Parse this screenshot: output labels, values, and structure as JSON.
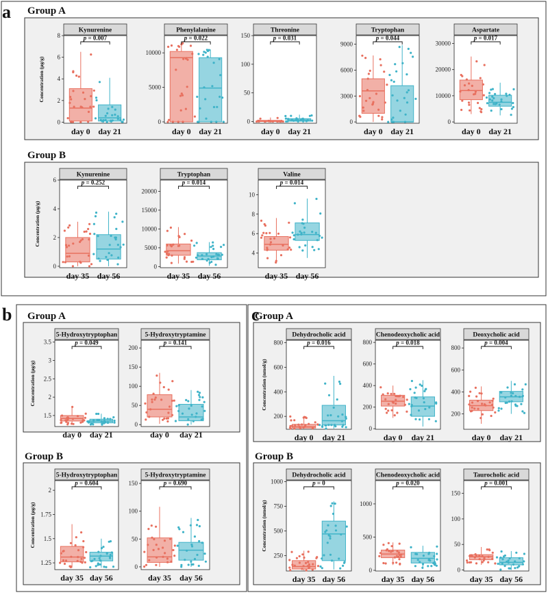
{
  "figure": {
    "colors": {
      "day_early": "#e8705f",
      "day_late": "#3fb3c8"
    },
    "sections": [
      {
        "letter": "a",
        "groups": [
          {
            "label": "Group A"
          },
          {
            "label": "Group B"
          }
        ]
      },
      {
        "letter": "b",
        "groups": [
          {
            "label": "Group A"
          },
          {
            "label": "Group B"
          }
        ]
      },
      {
        "letter": "c",
        "groups": [
          {
            "label": "Group A"
          },
          {
            "label": "Group B"
          }
        ]
      }
    ]
  },
  "chart_data": [
    {
      "type": "box",
      "panel": "a",
      "group": "Group A",
      "title": "Kynurenine",
      "ylabel": "Concentration (μg/g)",
      "categories": [
        "day 0",
        "day 21"
      ],
      "p_value": "p = 0.007",
      "ylim": [
        -0.1,
        8
      ],
      "yticks": [
        0,
        2,
        4,
        6,
        8
      ],
      "series": [
        {
          "name": "day 0",
          "q1": 0.1,
          "median": 1.3,
          "q3": 3.1,
          "whisker_low": 0,
          "whisker_high": 6.5
        },
        {
          "name": "day 21",
          "q1": 0.1,
          "median": 0.4,
          "q3": 1.6,
          "whisker_low": 0,
          "whisker_high": 4.1
        }
      ]
    },
    {
      "type": "box",
      "panel": "a",
      "group": "Group A",
      "title": "Phenylalanine",
      "ylabel": "",
      "categories": [
        "day 0",
        "day 21"
      ],
      "p_value": "p = 0.022",
      "ylim": [
        -200,
        12500
      ],
      "yticks": [
        0,
        5000,
        10000
      ],
      "series": [
        {
          "name": "day 0",
          "q1": 0,
          "median": 9300,
          "q3": 10200,
          "whisker_low": 0,
          "whisker_high": 11500
        },
        {
          "name": "day 21",
          "q1": 0,
          "median": 4900,
          "q3": 9300,
          "whisker_low": 0,
          "whisker_high": 10500
        }
      ]
    },
    {
      "type": "box",
      "panel": "a",
      "group": "Group A",
      "title": "Threonine",
      "ylabel": "",
      "categories": [
        "day 0",
        "day 21"
      ],
      "p_value": "p = 0.031",
      "ylim": [
        -3,
        150
      ],
      "yticks": [
        0,
        50,
        100,
        150
      ],
      "series": [
        {
          "name": "day 0",
          "q1": 0,
          "median": 1,
          "q3": 2,
          "whisker_low": 0,
          "whisker_high": 7
        },
        {
          "name": "day 21",
          "q1": 0.5,
          "median": 2.5,
          "q3": 5,
          "whisker_low": 0,
          "whisker_high": 12
        }
      ]
    },
    {
      "type": "box",
      "panel": "a",
      "group": "Group A",
      "title": "Tryptophan",
      "ylabel": "",
      "categories": [
        "day 0",
        "day 21"
      ],
      "p_value": "p = 0.044",
      "ylim": [
        -150,
        10000
      ],
      "yticks": [
        0,
        3000,
        6000,
        9000
      ],
      "series": [
        {
          "name": "day 0",
          "q1": 1000,
          "median": 3600,
          "q3": 5000,
          "whisker_low": 0,
          "whisker_high": 7700
        },
        {
          "name": "day 21",
          "q1": 0,
          "median": 0,
          "q3": 4200,
          "whisker_low": 0,
          "whisker_high": 8900
        }
      ]
    },
    {
      "type": "box",
      "panel": "a",
      "group": "Group A",
      "title": "Aspartate",
      "ylabel": "",
      "categories": [
        "day 0",
        "day 21"
      ],
      "p_value": "p = 0.017",
      "ylim": [
        -500,
        33000
      ],
      "yticks": [
        0,
        10000,
        20000,
        30000
      ],
      "series": [
        {
          "name": "day 0",
          "q1": 8500,
          "median": 12000,
          "q3": 16000,
          "whisker_low": 3000,
          "whisker_high": 25000
        },
        {
          "name": "day 21",
          "q1": 6000,
          "median": 7500,
          "q3": 10200,
          "whisker_low": 2500,
          "whisker_high": 15000
        }
      ]
    },
    {
      "type": "box",
      "panel": "a",
      "group": "Group B",
      "title": "Kynurenine",
      "ylabel": "Concentration (μg/g)",
      "categories": [
        "day 35",
        "day 56"
      ],
      "p_value": "p = 0.252",
      "ylim": [
        -0.1,
        6
      ],
      "yticks": [
        0,
        2,
        4,
        6
      ],
      "series": [
        {
          "name": "day 35",
          "q1": 0.3,
          "median": 0.9,
          "q3": 2.0,
          "whisker_low": 0,
          "whisker_high": 3.1
        },
        {
          "name": "day 56",
          "q1": 0.5,
          "median": 1.2,
          "q3": 2.2,
          "whisker_low": 0,
          "whisker_high": 3.8
        }
      ]
    },
    {
      "type": "box",
      "panel": "a",
      "group": "Group B",
      "title": "Tryptophan",
      "ylabel": "",
      "categories": [
        "day 35",
        "day 56"
      ],
      "p_value": "p = 0.014",
      "ylim": [
        -300,
        23000
      ],
      "yticks": [
        0,
        5000,
        10000,
        15000,
        20000
      ],
      "series": [
        {
          "name": "day 35",
          "q1": 3000,
          "median": 4200,
          "q3": 6000,
          "whisker_low": 800,
          "whisker_high": 10500
        },
        {
          "name": "day 56",
          "q1": 1800,
          "median": 2800,
          "q3": 3700,
          "whisker_low": 200,
          "whisker_high": 6500
        }
      ]
    },
    {
      "type": "box",
      "panel": "a",
      "group": "Group B",
      "title": "Valine",
      "ylabel": "",
      "categories": [
        "day 35",
        "day 56"
      ],
      "p_value": "p = 0.014",
      "ylim": [
        2.5,
        11.5
      ],
      "yticks": [
        4,
        6,
        8,
        10
      ],
      "series": [
        {
          "name": "day 35",
          "q1": 4.3,
          "median": 4.9,
          "q3": 5.7,
          "whisker_low": 3.0,
          "whisker_high": 7.6
        },
        {
          "name": "day 56",
          "q1": 5.3,
          "median": 5.9,
          "q3": 7.1,
          "whisker_low": 3.5,
          "whisker_high": 9.6
        }
      ]
    },
    {
      "type": "box",
      "panel": "b",
      "group": "Group A",
      "title": "5-Hydroxytryptophan",
      "ylabel": "Concentration (μg/g)",
      "categories": [
        "day 0",
        "day 21"
      ],
      "p_value": "p = 0.049",
      "ylim": [
        1.2,
        3.55
      ],
      "yticks": [
        1.5,
        2.0,
        2.5,
        3.0,
        3.5
      ],
      "series": [
        {
          "name": "day 0",
          "q1": 1.35,
          "median": 1.42,
          "q3": 1.5,
          "whisker_low": 1.25,
          "whisker_high": 1.75
        },
        {
          "name": "day 21",
          "q1": 1.3,
          "median": 1.35,
          "q3": 1.4,
          "whisker_low": 1.25,
          "whisker_high": 1.55
        }
      ]
    },
    {
      "type": "box",
      "panel": "b",
      "group": "Group A",
      "title": "5-Hydroxytryptamine",
      "ylabel": "",
      "categories": [
        "day 0",
        "day 21"
      ],
      "p_value": "p = 0.141",
      "ylim": [
        -5,
        220
      ],
      "yticks": [
        0,
        50,
        100,
        150,
        200
      ],
      "series": [
        {
          "name": "day 0",
          "q1": 20,
          "median": 40,
          "q3": 78,
          "whisker_low": 2,
          "whisker_high": 135
        },
        {
          "name": "day 21",
          "q1": 10,
          "median": 20,
          "q3": 53,
          "whisker_low": 0,
          "whisker_high": 90
        }
      ]
    },
    {
      "type": "box",
      "panel": "b",
      "group": "Group B",
      "title": "5-Hydroxytryptophan",
      "ylabel": "Concentration (μg/g)",
      "categories": [
        "day 35",
        "day 56"
      ],
      "p_value": "p = 0.604",
      "ylim": [
        1.18,
        2.1
      ],
      "yticks": [
        1.25,
        1.5,
        1.75,
        2.0
      ],
      "series": [
        {
          "name": "day 35",
          "q1": 1.26,
          "median": 1.31,
          "q3": 1.42,
          "whisker_low": 1.2,
          "whisker_high": 1.65
        },
        {
          "name": "day 56",
          "q1": 1.27,
          "median": 1.32,
          "q3": 1.36,
          "whisker_low": 1.2,
          "whisker_high": 1.5
        }
      ]
    },
    {
      "type": "box",
      "panel": "b",
      "group": "Group B",
      "title": "5-Hydroxytryptamine",
      "ylabel": "",
      "categories": [
        "day 35",
        "day 56"
      ],
      "p_value": "p = 0.690",
      "ylim": [
        -5,
        155
      ],
      "yticks": [
        0,
        50,
        100,
        150
      ],
      "series": [
        {
          "name": "day 35",
          "q1": 8,
          "median": 18,
          "q3": 52,
          "whisker_low": 0,
          "whisker_high": 108
        },
        {
          "name": "day 56",
          "q1": 12,
          "median": 30,
          "q3": 44,
          "whisker_low": 0,
          "whisker_high": 88
        }
      ]
    },
    {
      "type": "box",
      "panel": "c",
      "group": "Group A",
      "title": "Dehydrocholic acid",
      "ylabel": "Concentration (nmol/g)",
      "categories": [
        "day 0",
        "day 21"
      ],
      "p_value": "p = 0.016",
      "ylim": [
        95,
        820
      ],
      "yticks": [
        200,
        400,
        600,
        800
      ],
      "series": [
        {
          "name": "day 0",
          "q1": 105,
          "median": 115,
          "q3": 135,
          "whisker_low": 100,
          "whisker_high": 200
        },
        {
          "name": "day 21",
          "q1": 130,
          "median": 165,
          "q3": 290,
          "whisker_low": 100,
          "whisker_high": 530
        }
      ]
    },
    {
      "type": "box",
      "panel": "c",
      "group": "Group A",
      "title": "Chenodeoxycholic acid",
      "ylabel": "",
      "categories": [
        "day 0",
        "day 21"
      ],
      "p_value": "p = 0.018",
      "ylim": [
        -5,
        820
      ],
      "yticks": [
        0,
        200,
        400,
        600,
        800
      ],
      "series": [
        {
          "name": "day 0",
          "q1": 210,
          "median": 255,
          "q3": 310,
          "whisker_low": 100,
          "whisker_high": 400
        },
        {
          "name": "day 21",
          "q1": 115,
          "median": 210,
          "q3": 295,
          "whisker_low": 20,
          "whisker_high": 450
        }
      ]
    },
    {
      "type": "box",
      "panel": "c",
      "group": "Group A",
      "title": "Deoxycholic acid",
      "ylabel": "",
      "categories": [
        "day 0",
        "day 21"
      ],
      "p_value": "p = 0.004",
      "ylim": [
        60,
        870
      ],
      "yticks": [
        200,
        400,
        600,
        800
      ],
      "series": [
        {
          "name": "day 0",
          "q1": 230,
          "median": 275,
          "q3": 325,
          "whisker_low": 110,
          "whisker_high": 450
        },
        {
          "name": "day 21",
          "q1": 310,
          "median": 355,
          "q3": 405,
          "whisker_low": 200,
          "whisker_high": 500
        }
      ]
    },
    {
      "type": "box",
      "panel": "c",
      "group": "Group B",
      "title": "Dehydrocholic acid",
      "ylabel": "Concentration (nmol/g)",
      "categories": [
        "day 35",
        "day 56"
      ],
      "p_value": "p = 0",
      "ylim": [
        95,
        1010
      ],
      "yticks": [
        250,
        500,
        750,
        1000
      ],
      "series": [
        {
          "name": "day 35",
          "q1": 115,
          "median": 140,
          "q3": 200,
          "whisker_low": 100,
          "whisker_high": 300
        },
        {
          "name": "day 56",
          "q1": 200,
          "median": 470,
          "q3": 600,
          "whisker_low": 110,
          "whisker_high": 800
        }
      ]
    },
    {
      "type": "box",
      "panel": "c",
      "group": "Group B",
      "title": "Chenodeoxycholic acid",
      "ylabel": "",
      "categories": [
        "day 35",
        "day 56"
      ],
      "p_value": "p = 0.020",
      "ylim": [
        -10,
        1350
      ],
      "yticks": [
        0,
        500,
        1000
      ],
      "series": [
        {
          "name": "day 35",
          "q1": 190,
          "median": 245,
          "q3": 305,
          "whisker_low": 80,
          "whisker_high": 420
        },
        {
          "name": "day 56",
          "q1": 110,
          "median": 180,
          "q3": 270,
          "whisker_low": 20,
          "whisker_high": 370
        }
      ]
    },
    {
      "type": "box",
      "panel": "c",
      "group": "Group B",
      "title": "Taurocholic acid",
      "ylabel": "",
      "categories": [
        "day 35",
        "day 56"
      ],
      "p_value": "p = 0.001",
      "ylim": [
        -2,
        175
      ],
      "yticks": [
        0,
        50,
        100,
        150
      ],
      "series": [
        {
          "name": "day 35",
          "q1": 20,
          "median": 26,
          "q3": 30,
          "whisker_low": 10,
          "whisker_high": 45
        },
        {
          "name": "day 56",
          "q1": 10,
          "median": 15,
          "q3": 24,
          "whisker_low": 0,
          "whisker_high": 37
        }
      ]
    }
  ]
}
